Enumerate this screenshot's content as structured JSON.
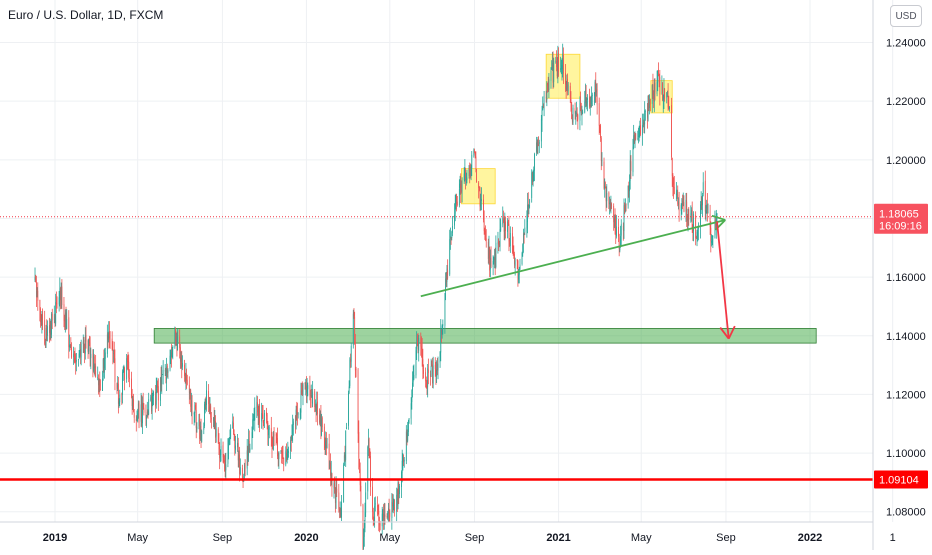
{
  "header": {
    "title": "Euro / U.S. Dollar, 1D, FXCM",
    "currency_button": "USD"
  },
  "chart_data": {
    "type": "candlestick",
    "title": "Euro / U.S. Dollar, 1D, FXCM",
    "y_tick_labels": [
      "1.24000",
      "1.22000",
      "1.20000",
      "1.18000",
      "1.16000",
      "1.14000",
      "1.12000",
      "1.10000",
      "1.08000"
    ],
    "x_tick_labels": [
      "2019",
      "May",
      "Sep",
      "2020",
      "May",
      "Sep",
      "2021",
      "May",
      "Sep",
      "2022",
      "1"
    ],
    "ylim": [
      1.0765,
      1.2545
    ],
    "grid": true,
    "colors": {
      "up": "#26a69a",
      "down": "#ef5350",
      "support_line": "#ff0000",
      "trend_arrow": "#4caf50",
      "target_arrow": "#f23645",
      "price_label_bg": "#f7525f"
    },
    "price_labels": {
      "current_price": "1.18065",
      "countdown": "16:09:16",
      "support_price": "1.09104"
    },
    "horizontal_levels": {
      "current": 1.1806,
      "support": 1.091
    },
    "price_path": [
      [
        "2018-12-01",
        1.159
      ],
      [
        "2018-12-18",
        1.1385
      ],
      [
        "2019-01-10",
        1.154
      ],
      [
        "2019-01-25",
        1.132
      ],
      [
        "2019-02-18",
        1.138
      ],
      [
        "2019-03-08",
        1.121
      ],
      [
        "2019-03-20",
        1.144
      ],
      [
        "2019-04-02",
        1.1195
      ],
      [
        "2019-04-17",
        1.13
      ],
      [
        "2019-04-26",
        1.112
      ],
      [
        "2019-05-20",
        1.1165
      ],
      [
        "2019-06-05",
        1.123
      ],
      [
        "2019-06-25",
        1.14
      ],
      [
        "2019-07-10",
        1.125
      ],
      [
        "2019-08-01",
        1.105
      ],
      [
        "2019-08-10",
        1.12
      ],
      [
        "2019-09-03",
        1.095
      ],
      [
        "2019-09-15",
        1.11
      ],
      [
        "2019-10-01",
        1.09
      ],
      [
        "2019-10-20",
        1.116
      ],
      [
        "2019-11-29",
        1.098
      ],
      [
        "2019-12-31",
        1.123
      ],
      [
        "2020-01-15",
        1.117
      ],
      [
        "2020-02-20",
        1.078
      ],
      [
        "2020-03-09",
        1.149
      ],
      [
        "2020-03-23",
        1.065
      ],
      [
        "2020-03-31",
        1.104
      ],
      [
        "2020-04-06",
        1.08
      ],
      [
        "2020-04-24",
        1.078
      ],
      [
        "2020-05-12",
        1.085
      ],
      [
        "2020-05-28",
        1.11
      ],
      [
        "2020-06-10",
        1.14
      ],
      [
        "2020-06-24",
        1.125
      ],
      [
        "2020-07-10",
        1.13
      ],
      [
        "2020-07-31",
        1.18
      ],
      [
        "2020-08-20",
        1.195
      ],
      [
        "2020-09-01",
        1.2
      ],
      [
        "2020-09-25",
        1.162
      ],
      [
        "2020-10-15",
        1.18
      ],
      [
        "2020-11-04",
        1.16
      ],
      [
        "2020-11-20",
        1.189
      ],
      [
        "2020-12-17",
        1.227
      ],
      [
        "2021-01-06",
        1.235
      ],
      [
        "2021-01-20",
        1.215
      ],
      [
        "2021-02-25",
        1.224
      ],
      [
        "2021-03-08",
        1.19
      ],
      [
        "2021-03-31",
        1.171
      ],
      [
        "2021-04-20",
        1.205
      ],
      [
        "2021-05-25",
        1.227
      ],
      [
        "2021-06-10",
        1.22
      ],
      [
        "2021-06-18",
        1.185
      ],
      [
        "2021-07-01",
        1.185
      ],
      [
        "2021-07-21",
        1.176
      ],
      [
        "2021-07-30",
        1.19
      ],
      [
        "2021-08-11",
        1.171
      ],
      [
        "2021-08-19",
        1.1806
      ]
    ],
    "annotations": {
      "highlight_zones": [
        {
          "x": [
            "2020-08-13",
            "2020-10-01"
          ],
          "y": [
            1.185,
            1.197
          ]
        },
        {
          "x": [
            "2020-12-14",
            "2021-02-01"
          ],
          "y": [
            1.221,
            1.236
          ]
        },
        {
          "x": [
            "2021-05-15",
            "2021-06-15"
          ],
          "y": [
            1.216,
            1.227
          ]
        }
      ],
      "support_zone": {
        "x": [
          "2019-05-25",
          "2022-01-10"
        ],
        "y": [
          1.1375,
          1.1425
        ]
      },
      "trend_arrow": {
        "from": [
          "2020-06-15",
          1.1535
        ],
        "to": [
          "2021-08-31",
          1.1795
        ]
      },
      "target_arrow": {
        "from": [
          "2021-08-19",
          1.179
        ],
        "to": [
          "2021-09-05",
          1.139
        ]
      }
    }
  }
}
